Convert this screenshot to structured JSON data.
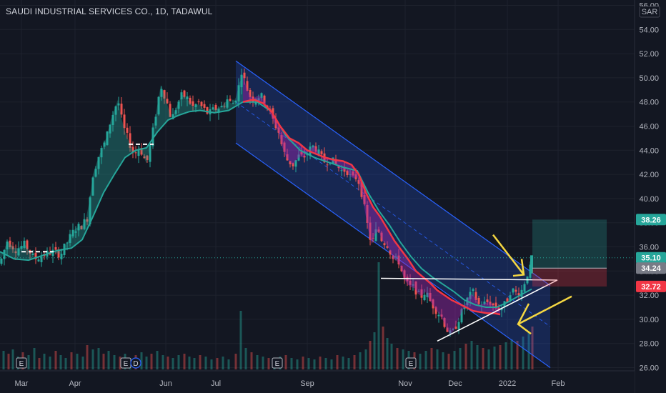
{
  "header": {
    "title": "SAUDI INDUSTRIAL SERVICES CO., 1D, TADAWUL"
  },
  "chart_data": {
    "type": "candlestick",
    "currency": "SAR",
    "y_ticks": [
      "26.00",
      "28.00",
      "30.00",
      "32.00",
      "34.00",
      "36.00",
      "38.00",
      "40.00",
      "42.00",
      "44.00",
      "46.00",
      "48.00",
      "50.00",
      "52.00",
      "54.00",
      "56.00"
    ],
    "x_ticks": [
      "Mar",
      "Apr",
      "Jun",
      "Jul",
      "Sep",
      "Nov",
      "Dec",
      "2022",
      "Feb"
    ],
    "price_labels": [
      {
        "value": "38.26",
        "color": "#26a69a"
      },
      {
        "value": "35.10",
        "color": "#26a69a"
      },
      {
        "value": "34.24",
        "color": "#787b86"
      },
      {
        "value": "32.72",
        "color": "#f23645"
      }
    ],
    "event_markers": [
      "E",
      "E",
      "D",
      "E",
      "E"
    ],
    "colors": {
      "up": "#26a69a",
      "down": "#ef5350",
      "ma_fast": "#f23645",
      "ma_slow": "#26a69a",
      "channel": "#2962ff",
      "arrow": "#f5d742"
    },
    "path": [
      [
        0,
        34.6
      ],
      [
        10,
        36.5
      ],
      [
        22,
        35.8
      ],
      [
        35,
        36.2
      ],
      [
        48,
        35.0
      ],
      [
        60,
        35.3
      ],
      [
        72,
        35.6
      ],
      [
        85,
        35.4
      ],
      [
        95,
        36.5
      ],
      [
        105,
        37.5
      ],
      [
        115,
        37.8
      ],
      [
        122,
        38.4
      ],
      [
        130,
        42.0
      ],
      [
        138,
        43.5
      ],
      [
        148,
        44.8
      ],
      [
        155,
        46.5
      ],
      [
        165,
        48.2
      ],
      [
        172,
        46.0
      ],
      [
        180,
        44.8
      ],
      [
        188,
        43.6
      ],
      [
        195,
        44.3
      ],
      [
        205,
        42.9
      ],
      [
        212,
        44.9
      ],
      [
        218,
        47.0
      ],
      [
        225,
        49.4
      ],
      [
        232,
        48.3
      ],
      [
        240,
        46.5
      ],
      [
        248,
        47.8
      ],
      [
        255,
        48.6
      ],
      [
        262,
        48.3
      ],
      [
        270,
        47.6
      ],
      [
        278,
        47.9
      ],
      [
        285,
        47.4
      ],
      [
        292,
        47.0
      ],
      [
        300,
        47.4
      ],
      [
        310,
        47.6
      ],
      [
        318,
        48.2
      ],
      [
        325,
        47.8
      ],
      [
        332,
        48.6
      ],
      [
        338,
        50.6
      ],
      [
        345,
        49.2
      ],
      [
        352,
        48.2
      ],
      [
        360,
        48.5
      ],
      [
        368,
        48.4
      ],
      [
        375,
        47.5
      ],
      [
        382,
        46.5
      ],
      [
        390,
        45.5
      ],
      [
        396,
        44.0
      ],
      [
        402,
        43.2
      ],
      [
        410,
        42.8
      ],
      [
        418,
        43.5
      ],
      [
        425,
        43.4
      ],
      [
        432,
        44.0
      ],
      [
        440,
        44.4
      ],
      [
        448,
        43.5
      ],
      [
        455,
        43.0
      ],
      [
        462,
        43.3
      ],
      [
        470,
        42.8
      ],
      [
        478,
        42.3
      ],
      [
        485,
        42.4
      ],
      [
        492,
        41.6
      ],
      [
        500,
        41.8
      ],
      [
        505,
        40.8
      ],
      [
        510,
        39.2
      ],
      [
        515,
        37.5
      ],
      [
        520,
        36.2
      ],
      [
        528,
        37.6
      ],
      [
        535,
        36.5
      ],
      [
        542,
        36.2
      ],
      [
        550,
        35.0
      ],
      [
        558,
        34.8
      ],
      [
        565,
        33.4
      ],
      [
        572,
        32.7
      ],
      [
        580,
        32.6
      ],
      [
        588,
        31.8
      ],
      [
        595,
        32.3
      ],
      [
        602,
        31.5
      ],
      [
        610,
        30.8
      ],
      [
        618,
        30.2
      ],
      [
        625,
        29.2
      ],
      [
        632,
        28.6
      ],
      [
        640,
        29.8
      ],
      [
        648,
        30.8
      ],
      [
        655,
        31.8
      ],
      [
        662,
        32.2
      ],
      [
        670,
        31.2
      ],
      [
        678,
        31.3
      ],
      [
        685,
        31.5
      ],
      [
        692,
        31.0
      ],
      [
        700,
        30.9
      ],
      [
        708,
        31.3
      ],
      [
        715,
        32.5
      ],
      [
        722,
        32.2
      ],
      [
        730,
        32.4
      ],
      [
        738,
        33.8
      ],
      [
        744,
        34.4
      ]
    ],
    "ma_fast": [
      [
        340,
        48.0
      ],
      [
        355,
        48.2
      ],
      [
        368,
        47.9
      ],
      [
        380,
        47.2
      ],
      [
        392,
        46.0
      ],
      [
        405,
        45.0
      ],
      [
        418,
        44.6
      ],
      [
        430,
        44.0
      ],
      [
        442,
        43.7
      ],
      [
        455,
        43.4
      ],
      [
        468,
        43.2
      ],
      [
        480,
        43.1
      ],
      [
        492,
        42.8
      ],
      [
        502,
        42.0
      ],
      [
        512,
        40.5
      ],
      [
        522,
        39.3
      ],
      [
        532,
        38.5
      ],
      [
        542,
        37.5
      ],
      [
        552,
        36.5
      ],
      [
        562,
        35.7
      ],
      [
        572,
        34.9
      ],
      [
        582,
        34.0
      ],
      [
        592,
        33.5
      ],
      [
        602,
        33.0
      ],
      [
        612,
        32.4
      ],
      [
        622,
        32.0
      ],
      [
        632,
        31.6
      ],
      [
        642,
        31.3
      ],
      [
        652,
        31.0
      ],
      [
        662,
        30.7
      ],
      [
        672,
        30.6
      ],
      [
        682,
        30.5
      ],
      [
        692,
        30.5
      ],
      [
        700,
        30.4
      ]
    ],
    "ma_slow": [
      [
        0,
        35.6
      ],
      [
        20,
        35.0
      ],
      [
        40,
        34.9
      ],
      [
        60,
        35.3
      ],
      [
        80,
        35.7
      ],
      [
        100,
        35.9
      ],
      [
        115,
        36.6
      ],
      [
        130,
        38.5
      ],
      [
        145,
        40.5
      ],
      [
        160,
        42.0
      ],
      [
        175,
        43.4
      ],
      [
        190,
        44.0
      ],
      [
        205,
        44.2
      ],
      [
        220,
        45.5
      ],
      [
        235,
        46.5
      ],
      [
        250,
        46.9
      ],
      [
        265,
        47.2
      ],
      [
        280,
        47.3
      ],
      [
        300,
        47.1
      ],
      [
        320,
        47.3
      ],
      [
        340,
        48.0
      ],
      [
        360,
        48.0
      ],
      [
        380,
        47.2
      ],
      [
        400,
        45.2
      ],
      [
        420,
        44.0
      ],
      [
        440,
        43.4
      ],
      [
        460,
        43.0
      ],
      [
        480,
        42.6
      ],
      [
        500,
        42.3
      ],
      [
        515,
        40.5
      ],
      [
        530,
        39.0
      ],
      [
        545,
        37.8
      ],
      [
        560,
        36.4
      ],
      [
        575,
        35.2
      ],
      [
        590,
        34.2
      ],
      [
        605,
        33.5
      ],
      [
        620,
        32.9
      ],
      [
        635,
        32.3
      ],
      [
        650,
        31.6
      ],
      [
        665,
        31.2
      ],
      [
        680,
        31.0
      ],
      [
        695,
        31.0
      ],
      [
        710,
        31.4
      ],
      [
        725,
        31.9
      ],
      [
        744,
        32.5
      ]
    ],
    "volume": [
      [
        5,
        26
      ],
      [
        12,
        22
      ],
      [
        18,
        28
      ],
      [
        25,
        18
      ],
      [
        32,
        24
      ],
      [
        40,
        20
      ],
      [
        48,
        30
      ],
      [
        55,
        16
      ],
      [
        62,
        22
      ],
      [
        70,
        18
      ],
      [
        78,
        26
      ],
      [
        85,
        20
      ],
      [
        92,
        16
      ],
      [
        100,
        24
      ],
      [
        108,
        22
      ],
      [
        116,
        18
      ],
      [
        122,
        34
      ],
      [
        130,
        28
      ],
      [
        138,
        30
      ],
      [
        145,
        22
      ],
      [
        152,
        26
      ],
      [
        160,
        20
      ],
      [
        168,
        18
      ],
      [
        175,
        22
      ],
      [
        182,
        16
      ],
      [
        190,
        20
      ],
      [
        198,
        24
      ],
      [
        205,
        18
      ],
      [
        212,
        22
      ],
      [
        220,
        26
      ],
      [
        228,
        20
      ],
      [
        235,
        18
      ],
      [
        242,
        16
      ],
      [
        250,
        20
      ],
      [
        258,
        22
      ],
      [
        265,
        18
      ],
      [
        272,
        16
      ],
      [
        280,
        20
      ],
      [
        288,
        18
      ],
      [
        296,
        14
      ],
      [
        304,
        16
      ],
      [
        312,
        18
      ],
      [
        320,
        14
      ],
      [
        330,
        22
      ],
      [
        337,
        82
      ],
      [
        344,
        30
      ],
      [
        352,
        24
      ],
      [
        360,
        20
      ],
      [
        368,
        18
      ],
      [
        376,
        16
      ],
      [
        384,
        14
      ],
      [
        392,
        18
      ],
      [
        400,
        20
      ],
      [
        408,
        16
      ],
      [
        416,
        14
      ],
      [
        424,
        18
      ],
      [
        432,
        16
      ],
      [
        440,
        14
      ],
      [
        448,
        18
      ],
      [
        456,
        16
      ],
      [
        464,
        14
      ],
      [
        472,
        20
      ],
      [
        480,
        18
      ],
      [
        488,
        16
      ],
      [
        496,
        20
      ],
      [
        504,
        24
      ],
      [
        512,
        28
      ],
      [
        518,
        40
      ],
      [
        524,
        52
      ],
      [
        530,
        150
      ],
      [
        536,
        60
      ],
      [
        542,
        44
      ],
      [
        548,
        36
      ],
      [
        556,
        30
      ],
      [
        564,
        28
      ],
      [
        572,
        26
      ],
      [
        580,
        24
      ],
      [
        588,
        22
      ],
      [
        596,
        26
      ],
      [
        604,
        30
      ],
      [
        612,
        28
      ],
      [
        620,
        24
      ],
      [
        628,
        22
      ],
      [
        636,
        26
      ],
      [
        644,
        30
      ],
      [
        652,
        36
      ],
      [
        660,
        40
      ],
      [
        668,
        34
      ],
      [
        676,
        30
      ],
      [
        684,
        28
      ],
      [
        692,
        32
      ],
      [
        700,
        34
      ],
      [
        708,
        38
      ],
      [
        716,
        42
      ],
      [
        724,
        40
      ],
      [
        732,
        46
      ],
      [
        740,
        52
      ],
      [
        745,
        60
      ]
    ]
  }
}
